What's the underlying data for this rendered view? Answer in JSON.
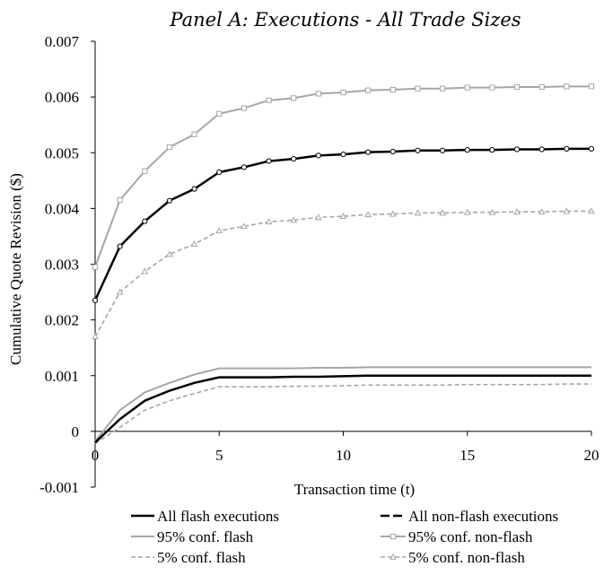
{
  "chart_data": {
    "type": "line",
    "title": "Panel A: Executions - All Trade Sizes",
    "xlabel": "Transaction time (t)",
    "ylabel": "Cumulative Quote Revision ($)",
    "xlim": [
      0,
      20
    ],
    "ylim": [
      -0.001,
      0.007
    ],
    "x_ticks": [
      0,
      5,
      10,
      15,
      20
    ],
    "x_tick_labels": [
      "0",
      "5",
      "10",
      "15",
      "20"
    ],
    "y_ticks": [
      -0.001,
      0,
      0.001,
      0.002,
      0.003,
      0.004,
      0.005,
      0.006,
      0.007
    ],
    "y_tick_labels": [
      "-0.001",
      "0",
      "0.001",
      "0.002",
      "0.003",
      "0.004",
      "0.005",
      "0.006",
      "0.007"
    ],
    "grid": false,
    "legend_position": "bottom",
    "x": [
      0,
      1,
      2,
      3,
      4,
      5,
      6,
      7,
      8,
      9,
      10,
      11,
      12,
      13,
      14,
      15,
      16,
      17,
      18,
      19,
      20
    ],
    "series": [
      {
        "name": "All flash executions",
        "color": "#000000",
        "style": "solid",
        "marker": "none",
        "width": 2.5,
        "values": [
          -0.0002,
          0.00022,
          0.00055,
          0.00073,
          0.00087,
          0.00097,
          0.00097,
          0.00097,
          0.00098,
          0.00098,
          0.00099,
          0.001,
          0.001,
          0.001,
          0.001,
          0.001,
          0.001,
          0.001,
          0.001,
          0.001,
          0.001
        ]
      },
      {
        "name": "All non-flash executions",
        "color": "#000000",
        "style": "solid",
        "marker": "circle",
        "width": 2.5,
        "values": [
          0.00235,
          0.00332,
          0.00377,
          0.00414,
          0.00435,
          0.00465,
          0.00474,
          0.00485,
          0.00489,
          0.00495,
          0.00497,
          0.00501,
          0.00502,
          0.00504,
          0.00504,
          0.00505,
          0.00505,
          0.00506,
          0.00506,
          0.00507,
          0.00507
        ]
      },
      {
        "name": "95% conf. flash",
        "color": "#a6a6a6",
        "style": "solid",
        "marker": "none",
        "width": 2,
        "values": [
          -0.00018,
          0.00038,
          0.0007,
          0.00087,
          0.00102,
          0.00113,
          0.00113,
          0.00113,
          0.00113,
          0.00114,
          0.00114,
          0.00115,
          0.00115,
          0.00115,
          0.00115,
          0.00115,
          0.00115,
          0.00115,
          0.00115,
          0.00115,
          0.00115
        ]
      },
      {
        "name": "95% conf. non-flash",
        "color": "#a6a6a6",
        "style": "solid",
        "marker": "square",
        "width": 2,
        "values": [
          0.00295,
          0.00415,
          0.00467,
          0.0051,
          0.00533,
          0.0057,
          0.0058,
          0.00594,
          0.00598,
          0.00606,
          0.00608,
          0.00612,
          0.00613,
          0.00615,
          0.00615,
          0.00617,
          0.00617,
          0.00618,
          0.00618,
          0.00619,
          0.00619
        ]
      },
      {
        "name": "5% conf. flash",
        "color": "#a6a6a6",
        "style": "dashed",
        "marker": "none",
        "width": 1.6,
        "values": [
          -0.00022,
          7e-05,
          0.00038,
          0.00055,
          0.00068,
          0.0008,
          0.0008,
          0.0008,
          0.00081,
          0.00081,
          0.00082,
          0.00083,
          0.00083,
          0.00083,
          0.00083,
          0.00084,
          0.00084,
          0.00084,
          0.00084,
          0.00085,
          0.00085
        ]
      },
      {
        "name": "5% conf. non-flash",
        "color": "#a6a6a6",
        "style": "dashed",
        "marker": "triangle",
        "width": 1.6,
        "values": [
          0.0017,
          0.0025,
          0.00287,
          0.00318,
          0.00336,
          0.0036,
          0.00368,
          0.00376,
          0.00379,
          0.00384,
          0.00386,
          0.00389,
          0.0039,
          0.00392,
          0.00392,
          0.00393,
          0.00393,
          0.00394,
          0.00394,
          0.00395,
          0.00395
        ]
      }
    ]
  }
}
